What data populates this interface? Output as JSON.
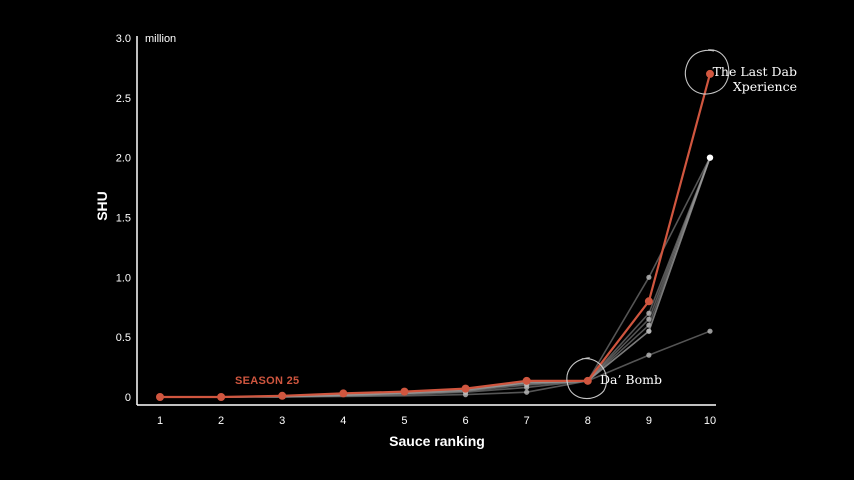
{
  "colors": {
    "background": "#000000",
    "highlight": "#d0563f",
    "other_seasons": "#9a9a9a",
    "axis": "#ffffff"
  },
  "chart_data": {
    "type": "line",
    "title": "",
    "xlabel": "Sauce ranking",
    "ylabel": "SHU",
    "y_unit": "million",
    "x": [
      1,
      2,
      3,
      4,
      5,
      6,
      7,
      8,
      9,
      10
    ],
    "x_tick_labels": [
      "1",
      "2",
      "3",
      "4",
      "5",
      "6",
      "7",
      "8",
      "9",
      "10"
    ],
    "xlim": [
      1,
      10
    ],
    "ylim": [
      0,
      3.0
    ],
    "y_tick_labels": [
      "0",
      "0.5",
      "1.0",
      "1.5",
      "2.0",
      "2.5",
      "3.0"
    ],
    "y_ticks": [
      0,
      0.5,
      1.0,
      1.5,
      2.0,
      2.5,
      3.0
    ],
    "grid": false,
    "highlight_series": {
      "name": "SEASON 25",
      "values": [
        0.0,
        0.0,
        0.01,
        0.03,
        0.045,
        0.07,
        0.135,
        0.135,
        0.8,
        2.7
      ]
    },
    "other_series": [
      {
        "values": [
          0.0,
          0.0,
          0.005,
          0.02,
          0.035,
          0.06,
          0.12,
          0.135,
          0.7,
          2.0
        ]
      },
      {
        "values": [
          0.0,
          0.0,
          0.005,
          0.02,
          0.035,
          0.06,
          0.12,
          0.135,
          0.65,
          2.0
        ]
      },
      {
        "values": [
          0.0,
          0.0,
          0.005,
          0.02,
          0.04,
          0.065,
          0.11,
          0.135,
          0.6,
          2.0
        ]
      },
      {
        "values": [
          0.0,
          0.0,
          0.005,
          0.015,
          0.03,
          0.05,
          0.1,
          0.135,
          0.55,
          2.0
        ]
      },
      {
        "values": [
          0.0,
          0.0,
          0.005,
          0.015,
          0.03,
          0.05,
          0.12,
          0.135,
          1.0,
          2.0
        ]
      },
      {
        "values": [
          0.0,
          0.0,
          0.0,
          0.01,
          0.02,
          0.04,
          0.08,
          0.135,
          0.55,
          2.0
        ]
      },
      {
        "values": [
          0.0,
          0.0,
          0.0,
          0.005,
          0.01,
          0.02,
          0.04,
          0.135,
          0.35,
          0.55
        ]
      }
    ],
    "annotations": [
      {
        "lines": [
          "The Last Dab",
          "Xperience"
        ],
        "x": 10,
        "y": 2.7
      },
      {
        "lines": [
          "Da’ Bomb"
        ],
        "x": 8,
        "y": 0.135
      }
    ]
  }
}
